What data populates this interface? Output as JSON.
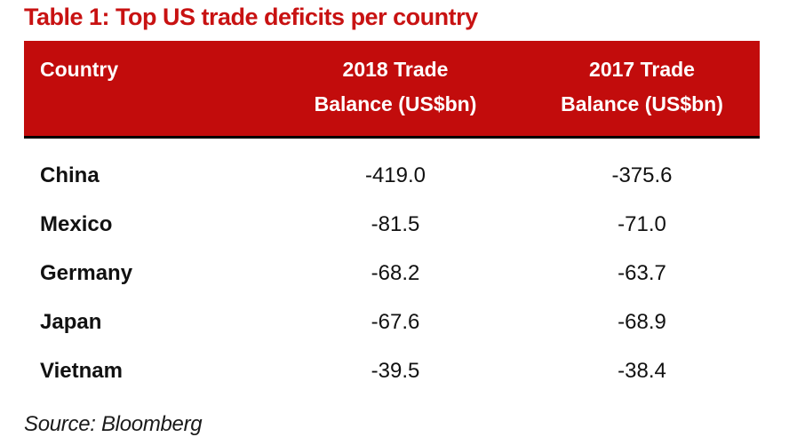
{
  "title": "Table 1: Top US trade deficits per country",
  "source": "Source: Bloomberg",
  "colors": {
    "title_red": "#c81212",
    "header_red": "#c20c0c",
    "header_text": "#ffffff",
    "body_text": "#111111",
    "header_divider": "#000000"
  },
  "table": {
    "headers": [
      {
        "line1": "Country",
        "line2": ""
      },
      {
        "line1": "2018 Trade",
        "line2": "Balance (US$bn)"
      },
      {
        "line1": "2017 Trade",
        "line2": "Balance (US$bn)"
      }
    ],
    "rows": [
      {
        "country": "China",
        "balance_2018": "-419.0",
        "balance_2017": "-375.6"
      },
      {
        "country": "Mexico",
        "balance_2018": "-81.5",
        "balance_2017": "-71.0"
      },
      {
        "country": "Germany",
        "balance_2018": "-68.2",
        "balance_2017": "-63.7"
      },
      {
        "country": "Japan",
        "balance_2018": "-67.6",
        "balance_2017": "-68.9"
      },
      {
        "country": "Vietnam",
        "balance_2018": "-39.5",
        "balance_2017": "-38.4"
      }
    ]
  },
  "chart_data": {
    "type": "table",
    "title": "Table 1: Top US trade deficits per country",
    "columns": [
      "Country",
      "2018 Trade Balance (US$bn)",
      "2017 Trade Balance (US$bn)"
    ],
    "rows": [
      [
        "China",
        -419.0,
        -375.6
      ],
      [
        "Mexico",
        -81.5,
        -71.0
      ],
      [
        "Germany",
        -68.2,
        -63.7
      ],
      [
        "Japan",
        -67.6,
        -68.9
      ],
      [
        "Vietnam",
        -39.5,
        -38.4
      ]
    ],
    "source": "Source: Bloomberg"
  }
}
